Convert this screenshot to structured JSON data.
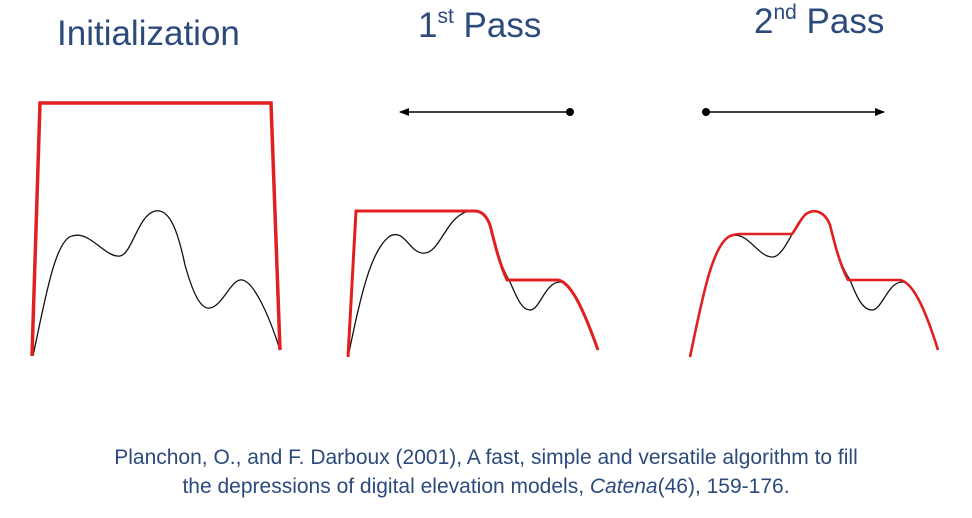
{
  "panels": [
    {
      "title": "Initialization"
    },
    {
      "title_base": "1",
      "title_sup": "st",
      "title_rest": " Pass"
    },
    {
      "title_base": "2",
      "title_sup": "nd",
      "title_rest": " Pass"
    }
  ],
  "citation": {
    "line1": "Planchon, O., and F. Darboux (2001), A fast, simple and versatile algorithm to fill",
    "line2_pre": "the depressions of digital elevation models, ",
    "journal": "Catena",
    "line2_post": "(46), 159-176."
  },
  "colors": {
    "text": "#2c4a7c",
    "terrain": "#111111",
    "water_surface": "#e02020",
    "arrow": "#000000"
  }
}
